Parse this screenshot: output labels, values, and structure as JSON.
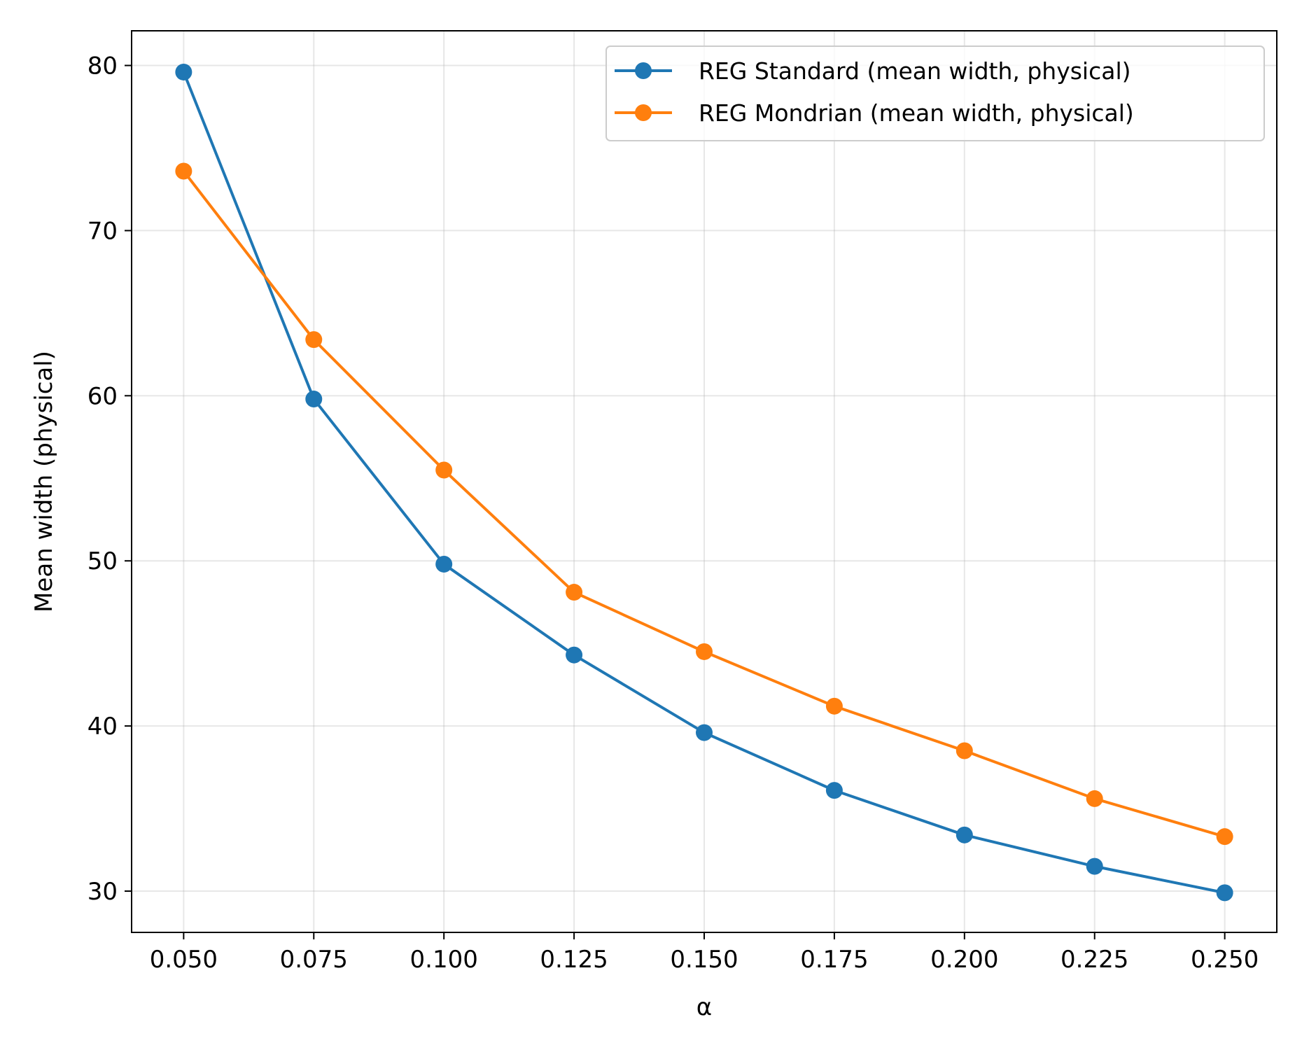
{
  "chart_data": {
    "type": "line",
    "title": "",
    "xlabel": "α",
    "ylabel": "Mean width (physical)",
    "x": [
      0.05,
      0.075,
      0.1,
      0.125,
      0.15,
      0.175,
      0.2,
      0.225,
      0.25
    ],
    "x_tick_labels": [
      "0.050",
      "0.075",
      "0.100",
      "0.125",
      "0.150",
      "0.175",
      "0.200",
      "0.225",
      "0.250"
    ],
    "y_ticks": [
      30,
      40,
      50,
      60,
      70,
      80
    ],
    "y_tick_labels": [
      "30",
      "40",
      "50",
      "60",
      "70",
      "80"
    ],
    "xlim": [
      0.04,
      0.26
    ],
    "ylim": [
      27.5,
      82.1
    ],
    "grid": true,
    "legend_position": "top-right",
    "series": [
      {
        "name": "REG Standard (mean width, physical)",
        "color": "#1f77b4",
        "values": [
          79.6,
          59.8,
          49.8,
          44.3,
          39.6,
          36.1,
          33.4,
          31.5,
          29.9
        ]
      },
      {
        "name": "REG Mondrian (mean width, physical)",
        "color": "#ff7f0e",
        "values": [
          73.6,
          63.4,
          55.5,
          48.1,
          44.5,
          41.2,
          38.5,
          35.6,
          33.3
        ]
      }
    ]
  }
}
